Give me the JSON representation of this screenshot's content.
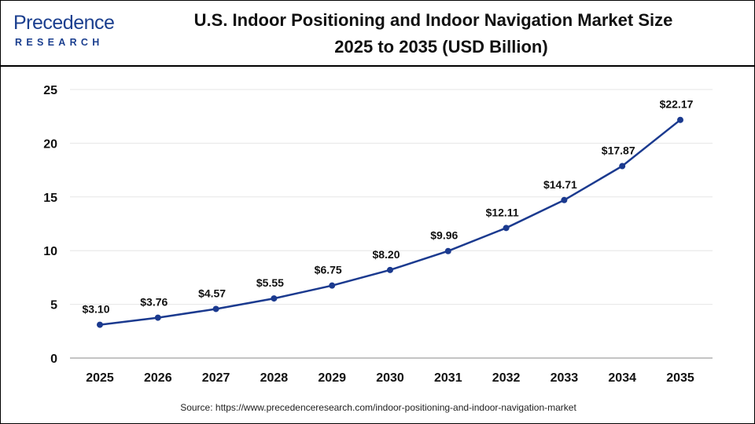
{
  "logo": {
    "name": "Precedence",
    "sub": "RESEARCH"
  },
  "title_lines": [
    "U.S. Indoor Positioning and Indoor Navigation Market Size",
    "2025 to 2035 (USD Billion)"
  ],
  "source": "Source: https://www.precedenceresearch.com/indoor-positioning-and-indoor-navigation-market",
  "colors": {
    "line": "#1b3a8f",
    "grid": "#e6e6e6",
    "brand": "#1b3f8f"
  },
  "chart_data": {
    "type": "line",
    "title": "U.S. Indoor Positioning and Indoor Navigation Market Size 2025 to 2035 (USD Billion)",
    "categories": [
      "2025",
      "2026",
      "2027",
      "2028",
      "2029",
      "2030",
      "2031",
      "2032",
      "2033",
      "2034",
      "2035"
    ],
    "values": [
      3.1,
      3.76,
      4.57,
      5.55,
      6.75,
      8.2,
      9.96,
      12.11,
      14.71,
      17.87,
      22.17
    ],
    "data_labels": [
      "$3.10",
      "$3.76",
      "$4.57",
      "$5.55",
      "$6.75",
      "$8.20",
      "$9.96",
      "$12.11",
      "$14.71",
      "$17.87",
      "$22.17"
    ],
    "ylim": [
      0,
      25
    ],
    "yticks": [
      "0",
      "5",
      "10",
      "15",
      "20",
      "25"
    ],
    "xlabel": "",
    "ylabel": "",
    "grid": "horizontal",
    "legend": "none"
  }
}
